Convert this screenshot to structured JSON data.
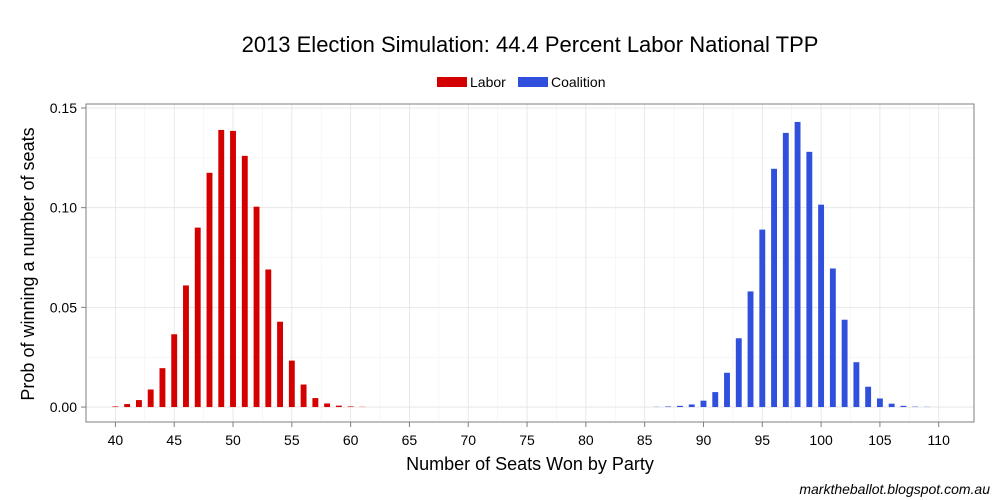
{
  "chart_data": {
    "type": "bar",
    "title": "2013 Election Simulation: 44.4 Percent Labor National TPP",
    "xlabel": "Number of Seats Won by Party",
    "ylabel": "Prob of winning a number of seats",
    "xlim": [
      37.5,
      113
    ],
    "ylim": [
      -0.0075,
      0.152
    ],
    "xticks": [
      40,
      45,
      50,
      55,
      60,
      65,
      70,
      75,
      80,
      85,
      90,
      95,
      100,
      105,
      110
    ],
    "yticks": [
      0,
      0.05,
      0.1,
      0.15
    ],
    "ytick_labels": [
      "0.00",
      "0.05",
      "0.10",
      "0.15"
    ],
    "grid": true,
    "legend": {
      "position": "top"
    },
    "series": [
      {
        "name": "Labor",
        "color": "#d40000",
        "x": [
          40,
          41,
          42,
          43,
          44,
          45,
          46,
          47,
          48,
          49,
          50,
          51,
          52,
          53,
          54,
          55,
          56,
          57,
          58,
          59,
          60,
          61
        ],
        "values": [
          0.0003,
          0.0015,
          0.0035,
          0.0088,
          0.0195,
          0.0365,
          0.061,
          0.09,
          0.1175,
          0.139,
          0.1385,
          0.126,
          0.1005,
          0.069,
          0.0428,
          0.0233,
          0.0113,
          0.0045,
          0.0018,
          0.0007,
          0.0003,
          0.0001
        ]
      },
      {
        "name": "Coalition",
        "color": "#2f4fdc",
        "x": [
          86,
          87,
          88,
          89,
          90,
          91,
          92,
          93,
          94,
          95,
          96,
          97,
          98,
          99,
          100,
          101,
          102,
          103,
          104,
          105,
          106,
          107,
          108,
          109
        ],
        "values": [
          0.0001,
          0.0003,
          0.0006,
          0.0013,
          0.0032,
          0.0075,
          0.0172,
          0.0345,
          0.058,
          0.089,
          0.1195,
          0.1375,
          0.143,
          0.128,
          0.1015,
          0.0695,
          0.0438,
          0.0225,
          0.0102,
          0.0043,
          0.0017,
          0.0006,
          0.0002,
          0.0001
        ]
      }
    ]
  },
  "footer": "marktheballot.blogspot.com.au"
}
